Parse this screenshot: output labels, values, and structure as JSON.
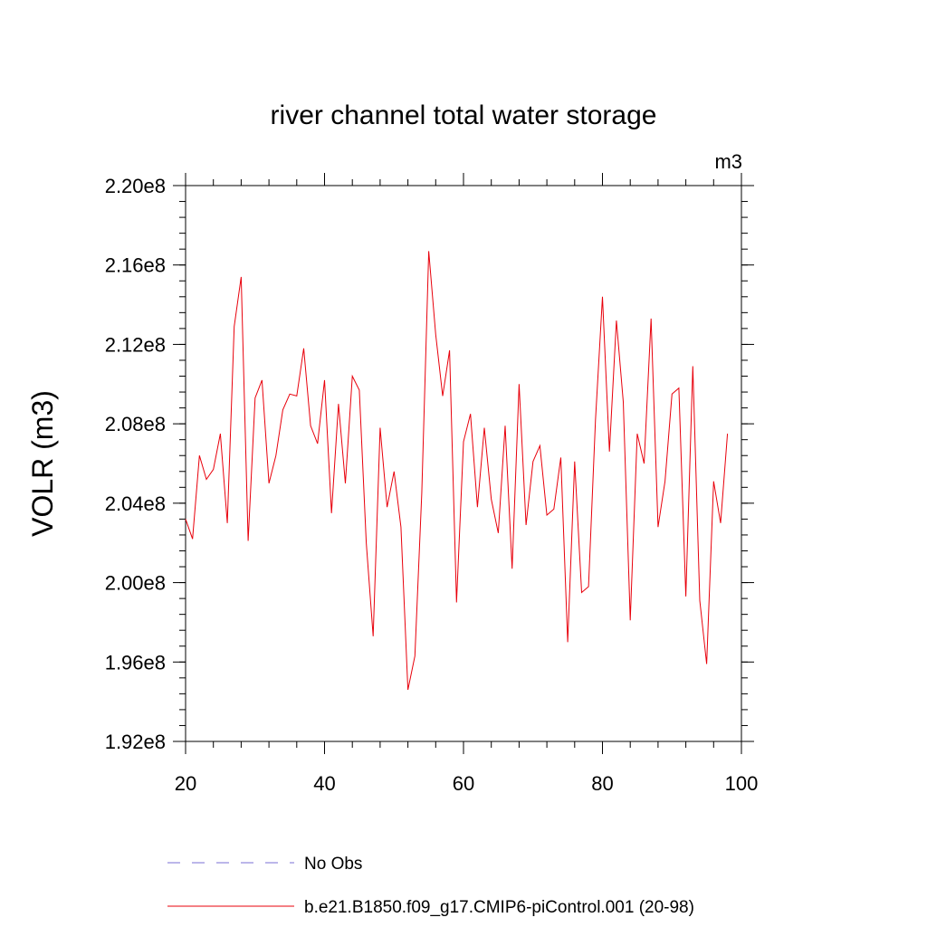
{
  "chart_data": {
    "type": "line",
    "title": "river channel total water storage",
    "units": "m3",
    "ylabel": "VOLR  (m3)",
    "xlabel": "",
    "xlim": [
      20,
      100
    ],
    "ylim": [
      192000000,
      220000000
    ],
    "xticks": [
      20,
      40,
      60,
      80,
      100
    ],
    "yticks": [
      192000000,
      196000000,
      200000000,
      204000000,
      208000000,
      212000000,
      216000000,
      220000000
    ],
    "xtick_labels": [
      "20",
      "40",
      "60",
      "80",
      "100"
    ],
    "ytick_labels": [
      "1.92e8",
      "1.96e8",
      "2.00e8",
      "2.04e8",
      "2.08e8",
      "2.12e8",
      "2.16e8",
      "2.20e8"
    ],
    "legend": [
      {
        "label": "No Obs",
        "style": "dashed",
        "color": "#7a6fd6"
      },
      {
        "label": "b.e21.B1850.f09_g17.CMIP6-piControl.001 (20-98)",
        "style": "solid",
        "color": "#e8000b"
      }
    ],
    "series": [
      {
        "name": "b.e21.B1850.f09_g17.CMIP6-piControl.001 (20-98)",
        "color": "#e8000b",
        "x": [
          20,
          21,
          22,
          23,
          24,
          25,
          26,
          27,
          28,
          29,
          30,
          31,
          32,
          33,
          34,
          35,
          36,
          37,
          38,
          39,
          40,
          41,
          42,
          43,
          44,
          45,
          46,
          47,
          48,
          49,
          50,
          51,
          52,
          53,
          54,
          55,
          56,
          57,
          58,
          59,
          60,
          61,
          62,
          63,
          64,
          65,
          66,
          67,
          68,
          69,
          70,
          71,
          72,
          73,
          74,
          75,
          76,
          77,
          78,
          79,
          80,
          81,
          82,
          83,
          84,
          85,
          86,
          87,
          88,
          89,
          90,
          91,
          92,
          93,
          94,
          95,
          96,
          97,
          98
        ],
        "values": [
          203200000,
          202200000,
          206400000,
          205200000,
          205700000,
          207500000,
          203000000,
          212900000,
          215400000,
          202100000,
          209300000,
          210200000,
          205000000,
          206400000,
          208700000,
          209500000,
          209400000,
          211800000,
          207900000,
          207000000,
          210200000,
          203500000,
          209000000,
          205000000,
          210400000,
          209700000,
          202000000,
          197300000,
          207800000,
          203800000,
          205600000,
          202800000,
          194600000,
          196300000,
          204500000,
          216700000,
          212500000,
          209400000,
          211700000,
          199000000,
          207100000,
          208500000,
          203800000,
          207800000,
          204200000,
          202500000,
          207900000,
          200700000,
          210000000,
          202900000,
          206100000,
          206900000,
          203400000,
          203700000,
          206300000,
          197000000,
          206100000,
          199500000,
          199800000,
          208200000,
          214400000,
          206600000,
          213200000,
          209100000,
          198100000,
          207500000,
          206000000,
          213300000,
          202800000,
          205100000,
          209500000,
          209800000,
          199300000,
          210900000,
          199100000,
          195900000,
          205100000,
          203000000,
          207500000
        ]
      }
    ]
  }
}
